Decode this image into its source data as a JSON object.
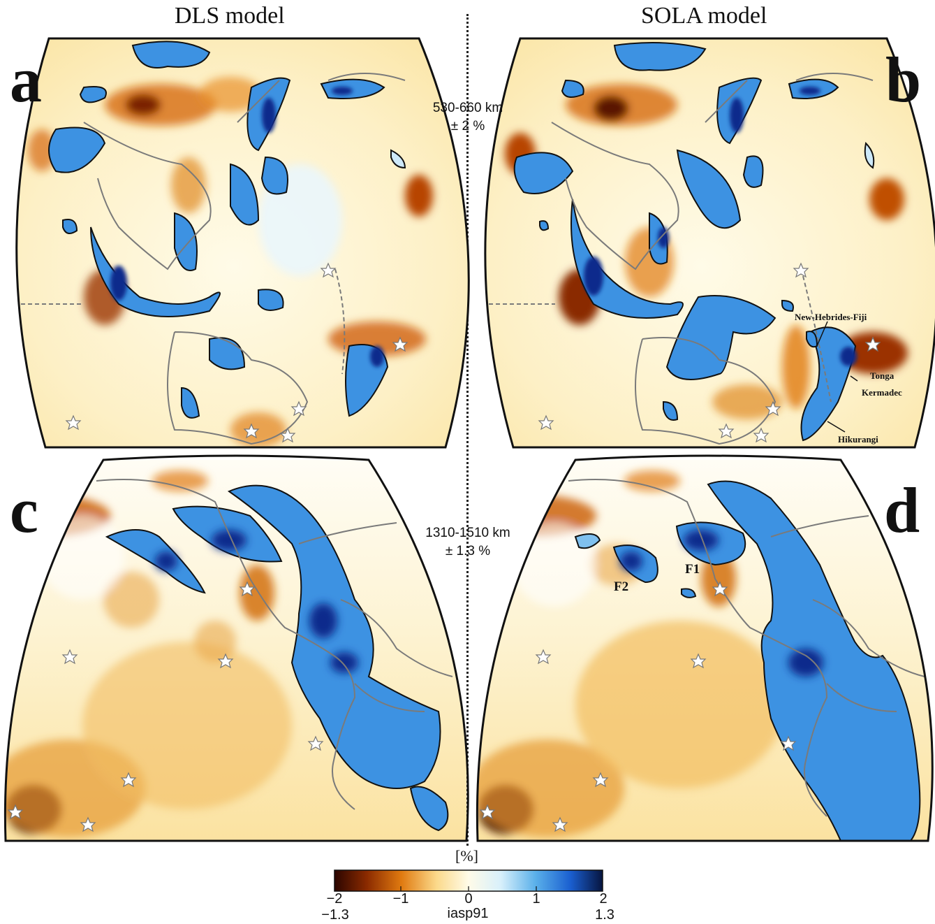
{
  "columns": {
    "left": "DLS model",
    "right": "SOLA model"
  },
  "panels": [
    {
      "letter": "a",
      "model": "DLS",
      "depth_row": "top"
    },
    {
      "letter": "b",
      "model": "SOLA",
      "depth_row": "top"
    },
    {
      "letter": "c",
      "model": "DLS",
      "depth_row": "bottom"
    },
    {
      "letter": "d",
      "model": "SOLA",
      "depth_row": "bottom"
    }
  ],
  "depth_labels": {
    "top": {
      "range": "530-660 km",
      "scale": "± 2 %"
    },
    "bottom": {
      "range": "1310-1510 km",
      "scale": "± 1.3 %"
    }
  },
  "annotations": {
    "new_hebrides": "New-Hebrides-Fiji",
    "tonga": "Tonga",
    "kermadec": "Kermadec",
    "hikurangi": "Hikurangi",
    "f1": "F1",
    "f2": "F2"
  },
  "colorbar": {
    "unit": "[%]",
    "ticks_top": [
      "−2",
      "−1",
      "0",
      "1",
      "2"
    ],
    "ticks_bottom": [
      "−1.3",
      "1.3"
    ],
    "reference": "iasp91",
    "colors": [
      "#2b0500",
      "#8a2a00",
      "#e07a10",
      "#fbd98a",
      "#fffbe8",
      "#d8f0fb",
      "#5ab0ea",
      "#1a5fd0",
      "#07153f"
    ]
  },
  "legend_colors": {
    "slow": "#e07a10",
    "fast": "#3a8de0",
    "contour": "#111111",
    "coast": "#7a7a7a"
  }
}
